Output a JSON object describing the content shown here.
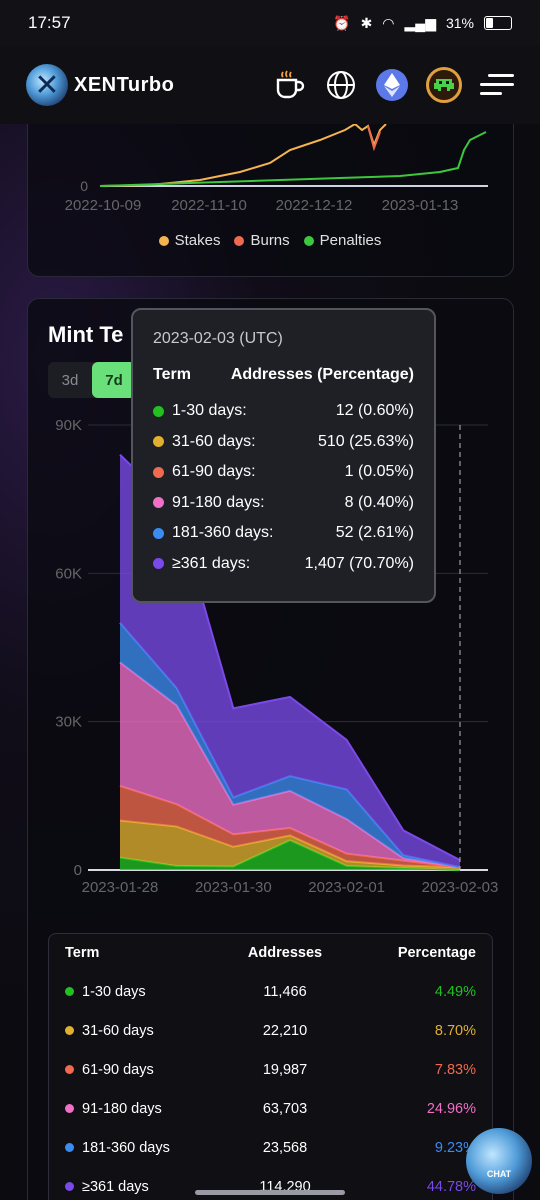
{
  "status_bar": {
    "time": "17:57",
    "battery": "31%"
  },
  "header": {
    "brand": "XENTurbo"
  },
  "top_chart": {
    "y_zero": "0",
    "x_ticks": [
      "2022-10-09",
      "2022-11-10",
      "2022-12-12",
      "2023-01-13"
    ],
    "legend": [
      {
        "label": "Stakes",
        "color": "#f4b450"
      },
      {
        "label": "Burns",
        "color": "#f06a50"
      },
      {
        "label": "Penalties",
        "color": "#3cc83c"
      }
    ]
  },
  "mint_card": {
    "title": "Mint Te",
    "ranges": [
      "3d",
      "7d"
    ],
    "active_range": "7d"
  },
  "chart_data": {
    "type": "area",
    "stacked": true,
    "x": [
      "2023-01-28",
      "2023-01-29",
      "2023-01-30",
      "2023-01-31",
      "2023-02-01",
      "2023-02-02",
      "2023-02-03"
    ],
    "x_ticks": [
      "2023-01-28",
      "2023-01-30",
      "2023-02-01",
      "2023-02-03"
    ],
    "y_ticks": [
      "0",
      "30K",
      "60K",
      "90K"
    ],
    "ylim": [
      0,
      90000
    ],
    "grid": true,
    "series": [
      {
        "name": "1-30 days",
        "color": "#22c022",
        "values": [
          2500,
          800,
          700,
          6000,
          800,
          400,
          12
        ]
      },
      {
        "name": "31-60 days",
        "color": "#e0b030",
        "values": [
          7500,
          8000,
          4000,
          1000,
          1000,
          500,
          510
        ]
      },
      {
        "name": "61-90 days",
        "color": "#f06a50",
        "values": [
          7000,
          4500,
          2500,
          1500,
          1500,
          1000,
          1
        ]
      },
      {
        "name": "91-180 days",
        "color": "#f070c8",
        "values": [
          25000,
          20000,
          6000,
          7500,
          7000,
          500,
          8
        ]
      },
      {
        "name": "181-360 days",
        "color": "#3c8cf0",
        "values": [
          8000,
          3500,
          1500,
          3000,
          6000,
          600,
          52
        ]
      },
      {
        "name": "≥361 days",
        "color": "#7a4ae8",
        "values": [
          34000,
          36000,
          18000,
          16000,
          10000,
          5000,
          1407
        ]
      }
    ]
  },
  "tooltip": {
    "date": "2023-02-03 (UTC)",
    "head_term": "Term",
    "head_value": "Addresses (Percentage)",
    "rows": [
      {
        "label": "1-30 days:",
        "value": "12 (0.60%)",
        "color": "#22c022"
      },
      {
        "label": "31-60 days:",
        "value": "510 (25.63%)",
        "color": "#e0b030"
      },
      {
        "label": "61-90 days:",
        "value": "1 (0.05%)",
        "color": "#f06a50"
      },
      {
        "label": "91-180 days:",
        "value": "8 (0.40%)",
        "color": "#f070c8"
      },
      {
        "label": "181-360 days:",
        "value": "52 (2.61%)",
        "color": "#3c8cf0"
      },
      {
        "label": "≥361 days:",
        "value": "1,407 (70.70%)",
        "color": "#7a4ae8"
      }
    ]
  },
  "table": {
    "headers": {
      "term": "Term",
      "addresses": "Addresses",
      "percentage": "Percentage"
    },
    "rows": [
      {
        "term": "1-30 days",
        "addresses": "11,466",
        "percentage": "4.49%",
        "color": "#22c022"
      },
      {
        "term": "31-60 days",
        "addresses": "22,210",
        "percentage": "8.70%",
        "color": "#e0b030"
      },
      {
        "term": "61-90 days",
        "addresses": "19,987",
        "percentage": "7.83%",
        "color": "#f06a50"
      },
      {
        "term": "91-180 days",
        "addresses": "63,703",
        "percentage": "24.96%",
        "color": "#f070c8"
      },
      {
        "term": "181-360 days",
        "addresses": "23,568",
        "percentage": "9.23%",
        "color": "#3c8cf0"
      },
      {
        "term": "≥361 days",
        "addresses": "114,290",
        "percentage": "44.78%",
        "color": "#7a4ae8"
      }
    ]
  },
  "chat_fab": {
    "label": "CHAT"
  }
}
